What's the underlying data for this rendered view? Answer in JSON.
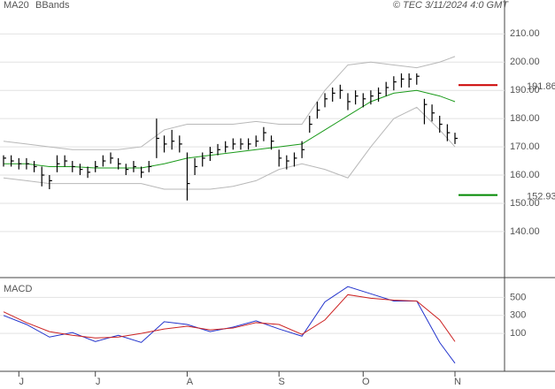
{
  "chart_data": [
    {
      "type": "ohlc",
      "legend": [
        "MA20",
        "BBands"
      ],
      "legend_colors": [
        "#1a9a1a",
        "#b8b8b8"
      ],
      "caption": "© TEC 3/11/2024 4:0 GMT",
      "categories": [
        null,
        null,
        "J",
        null,
        null,
        null,
        null,
        null,
        null,
        null,
        null,
        null,
        "J",
        null,
        null,
        null,
        null,
        null,
        null,
        null,
        null,
        null,
        null,
        null,
        "A",
        null,
        null,
        null,
        null,
        null,
        null,
        null,
        null,
        null,
        null,
        null,
        "S",
        null,
        null,
        null,
        null,
        null,
        null,
        null,
        null,
        null,
        null,
        "O",
        null,
        null,
        null,
        null,
        null,
        null,
        null,
        null,
        null,
        null,
        null,
        "N"
      ],
      "high": [
        167,
        167,
        166,
        166,
        165,
        163,
        160,
        167,
        167,
        165,
        164,
        163,
        165,
        167,
        168,
        166,
        164,
        165,
        163,
        165,
        180,
        174,
        176,
        174,
        168,
        166,
        168,
        170,
        171,
        172,
        173,
        173,
        173,
        174,
        177,
        174,
        169,
        167,
        168,
        172,
        181,
        186,
        189,
        191,
        192,
        189,
        190,
        189,
        190,
        191,
        193,
        195,
        196,
        196,
        196,
        187,
        185,
        181,
        178,
        175
      ],
      "low": [
        163,
        163,
        162,
        162,
        161,
        156,
        155,
        161,
        163,
        161,
        160,
        159,
        161,
        163,
        164,
        162,
        160,
        161,
        159,
        161,
        166,
        168,
        169,
        168,
        151,
        160,
        163,
        165,
        167,
        168,
        169,
        169,
        169,
        170,
        172,
        169,
        163,
        162,
        163,
        166,
        175,
        180,
        184,
        186,
        187,
        183,
        185,
        184,
        185,
        186,
        188,
        190,
        191,
        191,
        192,
        178,
        179,
        175,
        172,
        171
      ],
      "close": [
        166,
        165,
        164,
        164,
        163,
        160,
        158,
        164,
        165,
        163,
        162,
        161,
        163,
        165,
        166,
        164,
        162,
        163,
        161,
        163,
        173,
        171,
        172,
        171,
        157,
        163,
        166,
        168,
        169,
        170,
        171,
        171,
        171,
        172,
        175,
        172,
        166,
        165,
        166,
        169,
        178,
        183,
        187,
        189,
        190,
        186,
        188,
        187,
        188,
        189,
        191,
        193,
        194,
        194,
        195,
        185,
        182,
        178,
        175,
        173
      ],
      "bar_color": "#000000",
      "series": [
        {
          "name": "MA20",
          "color": "#1a9a1a",
          "x": [
            0,
            3,
            6,
            9,
            12,
            15,
            18,
            21,
            24,
            27,
            30,
            33,
            36,
            39,
            42,
            45,
            48,
            51,
            54,
            57,
            59
          ],
          "values": [
            164,
            164,
            163,
            163,
            162.5,
            162.5,
            162.5,
            164,
            166,
            167,
            168,
            169,
            170,
            171,
            176,
            181,
            186,
            189,
            190,
            188,
            186
          ]
        },
        {
          "name": "BBands",
          "color": "#b8b8b8",
          "x": [
            0,
            3,
            6,
            9,
            12,
            15,
            18,
            21,
            24,
            27,
            30,
            33,
            36,
            39,
            42,
            45,
            48,
            51,
            54,
            57,
            59
          ],
          "upper": [
            172,
            171,
            170,
            169,
            169,
            169,
            170,
            176,
            178,
            178,
            178,
            179,
            178,
            178,
            190,
            199,
            200,
            199,
            198,
            200,
            202
          ],
          "lower": [
            159,
            158,
            157,
            157,
            157,
            157,
            157,
            155,
            155,
            155,
            156,
            158,
            162,
            164,
            162,
            159,
            170,
            180,
            184,
            176,
            170
          ]
        }
      ],
      "levels": [
        {
          "value": 191.86,
          "color": "#cc0000"
        },
        {
          "value": 152.93,
          "color": "#008800"
        }
      ],
      "ylim": [
        124,
        222
      ],
      "yticks": [
        {
          "value": 140,
          "label": "140.00"
        },
        {
          "value": 150,
          "label": "150.00"
        },
        {
          "value": 160,
          "label": "160.00"
        },
        {
          "value": 170,
          "label": "170.00"
        },
        {
          "value": 180,
          "label": "180.00"
        },
        {
          "value": 190,
          "label": "190.00"
        },
        {
          "value": 200,
          "label": "200.00"
        },
        {
          "value": 210,
          "label": "210.00"
        }
      ],
      "grid": true
    },
    {
      "type": "line",
      "title": "MACD",
      "series": [
        {
          "color": "#2233cc",
          "x": [
            0,
            3,
            6,
            9,
            12,
            15,
            18,
            21,
            24,
            27,
            30,
            33,
            36,
            39,
            42,
            45,
            48,
            51,
            54,
            57,
            59
          ],
          "values": [
            300,
            200,
            60,
            110,
            10,
            80,
            0,
            230,
            200,
            120,
            170,
            240,
            150,
            70,
            450,
            620,
            540,
            460,
            460,
            0,
            -230
          ]
        },
        {
          "color": "#cc2222",
          "x": [
            0,
            3,
            6,
            9,
            12,
            15,
            18,
            21,
            24,
            27,
            30,
            33,
            36,
            39,
            42,
            45,
            48,
            51,
            54,
            57,
            59
          ],
          "values": [
            340,
            220,
            120,
            80,
            50,
            60,
            100,
            150,
            180,
            140,
            160,
            220,
            200,
            90,
            250,
            530,
            490,
            470,
            460,
            250,
            10
          ]
        }
      ],
      "ylim": [
        -320,
        700
      ],
      "yticks": [
        100,
        300,
        500
      ],
      "grid": true
    }
  ]
}
